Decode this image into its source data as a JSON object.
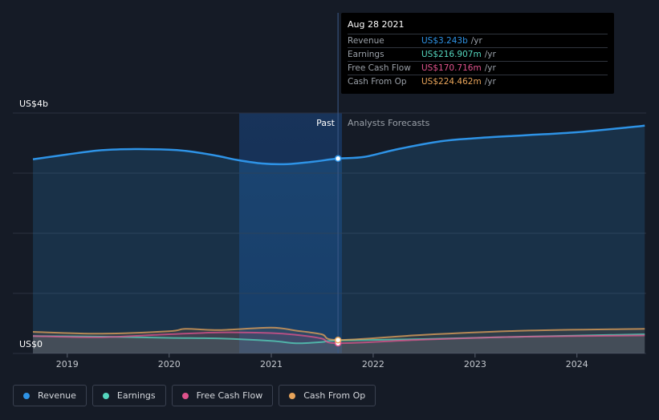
{
  "chart_data": {
    "type": "area",
    "ylabel_top": "US$4b",
    "ylabel_bottom": "US$0",
    "ylim": [
      0,
      4
    ],
    "x_ticks": [
      "2019",
      "2020",
      "2021",
      "2022",
      "2023",
      "2024"
    ],
    "past_label": "Past",
    "forecast_label": "Analysts Forecasts",
    "highlight_date": "2021-08-28",
    "series": [
      {
        "name": "Revenue",
        "color": "#2e93e6",
        "points": [
          [
            "2018-08-31",
            3.23
          ],
          [
            "2018-12-31",
            3.31
          ],
          [
            "2019-04-30",
            3.38
          ],
          [
            "2019-08-31",
            3.4
          ],
          [
            "2019-12-31",
            3.39
          ],
          [
            "2020-02-29",
            3.37
          ],
          [
            "2020-04-30",
            3.33
          ],
          [
            "2020-06-30",
            3.28
          ],
          [
            "2020-08-31",
            3.22
          ],
          [
            "2020-11-30",
            3.16
          ],
          [
            "2021-02-28",
            3.15
          ],
          [
            "2021-05-31",
            3.19
          ],
          [
            "2021-08-28",
            3.243
          ],
          [
            "2021-11-30",
            3.27
          ],
          [
            "2022-03-31",
            3.4
          ],
          [
            "2022-08-31",
            3.53
          ],
          [
            "2022-12-31",
            3.58
          ],
          [
            "2023-06-30",
            3.63
          ],
          [
            "2023-12-31",
            3.68
          ],
          [
            "2024-06-30",
            3.76
          ],
          [
            "2024-08-31",
            3.79
          ]
        ]
      },
      {
        "name": "Earnings",
        "color": "#55d6be",
        "points": [
          [
            "2018-08-31",
            0.29
          ],
          [
            "2019-04-30",
            0.28
          ],
          [
            "2019-12-31",
            0.26
          ],
          [
            "2020-06-30",
            0.25
          ],
          [
            "2020-12-31",
            0.21
          ],
          [
            "2021-03-31",
            0.17
          ],
          [
            "2021-06-30",
            0.19
          ],
          [
            "2021-08-28",
            0.217
          ],
          [
            "2022-06-30",
            0.24
          ],
          [
            "2023-06-30",
            0.28
          ],
          [
            "2024-08-31",
            0.32
          ]
        ]
      },
      {
        "name": "Free Cash Flow",
        "color": "#e0538d",
        "points": [
          [
            "2018-08-31",
            0.29
          ],
          [
            "2019-04-30",
            0.27
          ],
          [
            "2019-12-31",
            0.32
          ],
          [
            "2020-06-30",
            0.35
          ],
          [
            "2020-12-31",
            0.34
          ],
          [
            "2021-03-31",
            0.31
          ],
          [
            "2021-06-30",
            0.25
          ],
          [
            "2021-08-28",
            0.171
          ],
          [
            "2022-06-30",
            0.23
          ],
          [
            "2023-06-30",
            0.28
          ],
          [
            "2024-08-31",
            0.3
          ]
        ]
      },
      {
        "name": "Cash From Op",
        "color": "#e8a45a",
        "points": [
          [
            "2018-08-31",
            0.36
          ],
          [
            "2019-04-30",
            0.33
          ],
          [
            "2019-12-31",
            0.37
          ],
          [
            "2020-02-29",
            0.41
          ],
          [
            "2020-06-30",
            0.39
          ],
          [
            "2020-12-31",
            0.43
          ],
          [
            "2021-03-31",
            0.38
          ],
          [
            "2021-06-30",
            0.32
          ],
          [
            "2021-08-28",
            0.224
          ],
          [
            "2022-06-30",
            0.31
          ],
          [
            "2023-06-30",
            0.38
          ],
          [
            "2024-08-31",
            0.41
          ]
        ]
      }
    ]
  },
  "tooltip": {
    "date": "Aug 28 2021",
    "rows": [
      {
        "label": "Revenue",
        "value": "US$3.243b",
        "unit": "/yr",
        "color": "#2e93e6"
      },
      {
        "label": "Earnings",
        "value": "US$216.907m",
        "unit": "/yr",
        "color": "#55d6be"
      },
      {
        "label": "Free Cash Flow",
        "value": "US$170.716m",
        "unit": "/yr",
        "color": "#e0538d"
      },
      {
        "label": "Cash From Op",
        "value": "US$224.462m",
        "unit": "/yr",
        "color": "#e8a45a"
      }
    ]
  },
  "legend": [
    {
      "label": "Revenue",
      "color": "#2e93e6"
    },
    {
      "label": "Earnings",
      "color": "#55d6be"
    },
    {
      "label": "Free Cash Flow",
      "color": "#e0538d"
    },
    {
      "label": "Cash From Op",
      "color": "#e8a45a"
    }
  ]
}
